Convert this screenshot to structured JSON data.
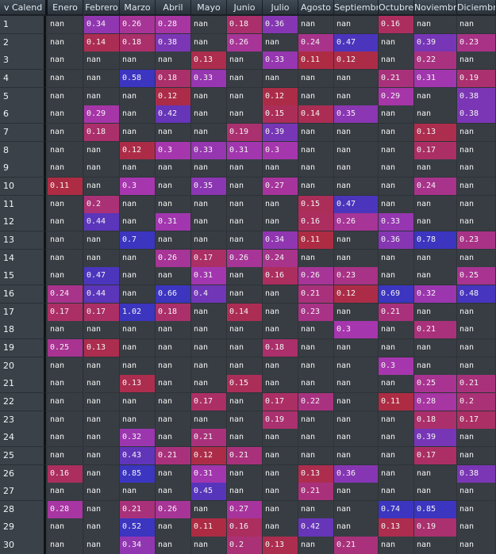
{
  "header": {
    "index_label": "v Calend",
    "columns": [
      "Enero",
      "Febrero",
      "Marzo",
      "Abril",
      "Mayo",
      "Junio",
      "Julio",
      "Agosto",
      "Septiembre",
      "Octubre",
      "Noviembre",
      "Diciembre"
    ]
  },
  "rows": [
    {
      "label": "1",
      "values": [
        "nan",
        "0.34",
        "0.26",
        "0.28",
        "nan",
        "0.18",
        "0.36",
        "nan",
        "nan",
        "0.16",
        "nan",
        "nan"
      ]
    },
    {
      "label": "2",
      "values": [
        "nan",
        "0.14",
        "0.18",
        "0.38",
        "nan",
        "0.26",
        "nan",
        "0.24",
        "0.47",
        "nan",
        "0.39",
        "0.23"
      ]
    },
    {
      "label": "3",
      "values": [
        "nan",
        "nan",
        "nan",
        "nan",
        "0.13",
        "nan",
        "0.33",
        "0.11",
        "0.12",
        "nan",
        "0.22",
        "nan"
      ]
    },
    {
      "label": "4",
      "values": [
        "nan",
        "nan",
        "0.58",
        "0.18",
        "0.33",
        "nan",
        "nan",
        "nan",
        "nan",
        "0.21",
        "0.31",
        "0.19"
      ]
    },
    {
      "label": "5",
      "values": [
        "nan",
        "nan",
        "nan",
        "0.12",
        "nan",
        "nan",
        "0.12",
        "nan",
        "nan",
        "0.29",
        "nan",
        "0.38"
      ]
    },
    {
      "label": "6",
      "values": [
        "nan",
        "0.29",
        "nan",
        "0.42",
        "nan",
        "nan",
        "0.15",
        "0.14",
        "0.35",
        "nan",
        "nan",
        "0.38"
      ]
    },
    {
      "label": "7",
      "values": [
        "nan",
        "0.18",
        "nan",
        "nan",
        "nan",
        "0.19",
        "0.39",
        "nan",
        "nan",
        "nan",
        "0.13",
        "nan"
      ]
    },
    {
      "label": "8",
      "values": [
        "nan",
        "nan",
        "0.12",
        "0.3",
        "0.33",
        "0.31",
        "0.3",
        "nan",
        "nan",
        "nan",
        "0.17",
        "nan"
      ]
    },
    {
      "label": "9",
      "values": [
        "nan",
        "nan",
        "nan",
        "nan",
        "nan",
        "nan",
        "nan",
        "nan",
        "nan",
        "nan",
        "nan",
        "nan"
      ]
    },
    {
      "label": "10",
      "values": [
        "0.11",
        "nan",
        "0.3",
        "nan",
        "0.35",
        "nan",
        "0.27",
        "nan",
        "nan",
        "nan",
        "0.24",
        "nan"
      ]
    },
    {
      "label": "11",
      "values": [
        "nan",
        "0.2",
        "nan",
        "nan",
        "nan",
        "nan",
        "nan",
        "0.15",
        "0.47",
        "nan",
        "nan",
        "nan"
      ]
    },
    {
      "label": "12",
      "values": [
        "nan",
        "0.44",
        "nan",
        "0.31",
        "nan",
        "nan",
        "nan",
        "0.16",
        "0.26",
        "0.33",
        "nan",
        "nan"
      ]
    },
    {
      "label": "13",
      "values": [
        "nan",
        "nan",
        "0.7",
        "nan",
        "nan",
        "nan",
        "0.34",
        "0.11",
        "nan",
        "0.36",
        "0.78",
        "0.23"
      ]
    },
    {
      "label": "14",
      "values": [
        "nan",
        "nan",
        "nan",
        "0.26",
        "0.17",
        "0.26",
        "0.24",
        "nan",
        "nan",
        "nan",
        "nan",
        "nan"
      ]
    },
    {
      "label": "15",
      "values": [
        "nan",
        "0.47",
        "nan",
        "nan",
        "0.31",
        "nan",
        "0.16",
        "0.26",
        "0.23",
        "nan",
        "nan",
        "0.25"
      ]
    },
    {
      "label": "16",
      "values": [
        "0.24",
        "0.44",
        "nan",
        "0.66",
        "0.4",
        "nan",
        "nan",
        "0.21",
        "0.12",
        "0.69",
        "0.32",
        "0.48"
      ]
    },
    {
      "label": "17",
      "values": [
        "0.17",
        "0.17",
        "1.02",
        "0.18",
        "nan",
        "0.14",
        "nan",
        "0.23",
        "nan",
        "0.21",
        "nan",
        "nan"
      ]
    },
    {
      "label": "18",
      "values": [
        "nan",
        "nan",
        "nan",
        "nan",
        "nan",
        "nan",
        "nan",
        "nan",
        "0.3",
        "nan",
        "0.21",
        "nan"
      ]
    },
    {
      "label": "19",
      "values": [
        "0.25",
        "0.13",
        "nan",
        "nan",
        "nan",
        "nan",
        "0.18",
        "nan",
        "nan",
        "nan",
        "nan",
        "nan"
      ]
    },
    {
      "label": "20",
      "values": [
        "nan",
        "nan",
        "nan",
        "nan",
        "nan",
        "nan",
        "nan",
        "nan",
        "nan",
        "0.3",
        "nan",
        "nan"
      ]
    },
    {
      "label": "21",
      "values": [
        "nan",
        "nan",
        "0.13",
        "nan",
        "nan",
        "0.15",
        "nan",
        "nan",
        "nan",
        "nan",
        "0.25",
        "0.21"
      ]
    },
    {
      "label": "22",
      "values": [
        "nan",
        "nan",
        "nan",
        "nan",
        "0.17",
        "nan",
        "0.17",
        "0.22",
        "nan",
        "0.11",
        "0.28",
        "0.2"
      ]
    },
    {
      "label": "23",
      "values": [
        "nan",
        "nan",
        "nan",
        "nan",
        "nan",
        "nan",
        "0.19",
        "nan",
        "nan",
        "nan",
        "0.18",
        "0.17"
      ]
    },
    {
      "label": "24",
      "values": [
        "nan",
        "nan",
        "0.32",
        "nan",
        "0.21",
        "nan",
        "nan",
        "nan",
        "nan",
        "nan",
        "0.39",
        "nan"
      ]
    },
    {
      "label": "25",
      "values": [
        "nan",
        "nan",
        "0.43",
        "0.21",
        "0.12",
        "0.21",
        "nan",
        "nan",
        "nan",
        "nan",
        "0.17",
        "nan"
      ]
    },
    {
      "label": "26",
      "values": [
        "0.16",
        "nan",
        "0.85",
        "nan",
        "0.31",
        "nan",
        "nan",
        "0.13",
        "0.36",
        "nan",
        "nan",
        "0.38"
      ]
    },
    {
      "label": "27",
      "values": [
        "nan",
        "nan",
        "nan",
        "nan",
        "0.45",
        "nan",
        "nan",
        "0.21",
        "nan",
        "nan",
        "nan",
        "nan"
      ]
    },
    {
      "label": "28",
      "values": [
        "0.28",
        "nan",
        "0.21",
        "0.26",
        "nan",
        "0.27",
        "nan",
        "nan",
        "nan",
        "0.74",
        "0.85",
        "nan"
      ]
    },
    {
      "label": "29",
      "values": [
        "nan",
        "nan",
        "0.52",
        "nan",
        "0.11",
        "0.16",
        "nan",
        "0.42",
        "nan",
        "0.13",
        "0.19",
        "nan"
      ]
    },
    {
      "label": "30",
      "values": [
        "nan",
        "nan",
        "0.34",
        "nan",
        "nan",
        "0.2",
        "0.13",
        "nan",
        "0.21",
        "nan",
        "nan",
        "nan"
      ]
    }
  ],
  "colors": {
    "background": "#34393e",
    "nan_cell": "#383d43",
    "low_value": "#ad2b3d",
    "mid_value": "#a636ad",
    "high_value": "#3b35c0"
  }
}
